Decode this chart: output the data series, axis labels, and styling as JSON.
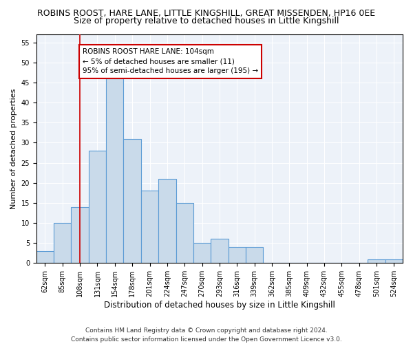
{
  "title": "ROBINS ROOST, HARE LANE, LITTLE KINGSHILL, GREAT MISSENDEN, HP16 0EE",
  "subtitle": "Size of property relative to detached houses in Little Kingshill",
  "xlabel": "Distribution of detached houses by size in Little Kingshill",
  "ylabel": "Number of detached properties",
  "categories": [
    "62sqm",
    "85sqm",
    "108sqm",
    "131sqm",
    "154sqm",
    "178sqm",
    "201sqm",
    "224sqm",
    "247sqm",
    "270sqm",
    "293sqm",
    "316sqm",
    "339sqm",
    "362sqm",
    "385sqm",
    "409sqm",
    "432sqm",
    "455sqm",
    "478sqm",
    "501sqm",
    "524sqm"
  ],
  "values": [
    3,
    10,
    14,
    28,
    46,
    31,
    18,
    21,
    15,
    5,
    6,
    4,
    4,
    0,
    0,
    0,
    0,
    0,
    0,
    1,
    1
  ],
  "bar_color": "#c9daea",
  "bar_edge_color": "#5b9bd5",
  "vline_x": 2.0,
  "vline_color": "#cc0000",
  "annotation_text_line0": "ROBINS ROOST HARE LANE: 104sqm",
  "annotation_text_line1": "← 5% of detached houses are smaller (11)",
  "annotation_text_line2": "95% of semi-detached houses are larger (195) →",
  "annotation_box_facecolor": "#ffffff",
  "annotation_box_edgecolor": "#cc0000",
  "ylim": [
    0,
    57
  ],
  "yticks": [
    0,
    5,
    10,
    15,
    20,
    25,
    30,
    35,
    40,
    45,
    50,
    55
  ],
  "background_color": "#edf2f9",
  "title_fontsize": 9,
  "subtitle_fontsize": 9,
  "xlabel_fontsize": 8.5,
  "ylabel_fontsize": 8,
  "tick_fontsize": 7,
  "annotation_fontsize": 7.5,
  "footer_line1": "Contains HM Land Registry data © Crown copyright and database right 2024.",
  "footer_line2": "Contains public sector information licensed under the Open Government Licence v3.0.",
  "footer_fontsize": 6.5
}
